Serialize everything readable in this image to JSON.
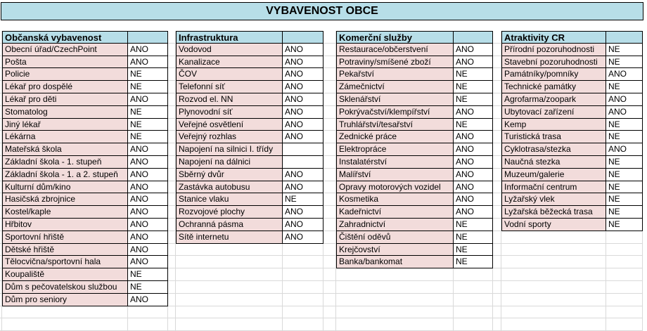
{
  "title": "VYBAVENOST OBCE",
  "tables": [
    {
      "header": "Občanská vybavenost",
      "rows": [
        [
          "Obecní úřad/CzechPoint",
          "ANO"
        ],
        [
          "Pošta",
          "ANO"
        ],
        [
          "Policie",
          "NE"
        ],
        [
          "Lékař pro dospělé",
          "NE"
        ],
        [
          "Lékař pro děti",
          "ANO"
        ],
        [
          "Stomatolog",
          "NE"
        ],
        [
          "Jiný lékař",
          "NE"
        ],
        [
          "Lékárna",
          "NE"
        ],
        [
          "Mateřská škola",
          "ANO"
        ],
        [
          "Základní škola - 1. stupeň",
          "ANO"
        ],
        [
          "Základní škola - 1. a 2. stupeň",
          "ANO"
        ],
        [
          "Kulturní dům/kino",
          "ANO"
        ],
        [
          "Hasičská zbrojnice",
          "ANO"
        ],
        [
          "Kostel/kaple",
          "ANO"
        ],
        [
          "Hřbitov",
          "ANO"
        ],
        [
          "Sportovní hřiště",
          "ANO"
        ],
        [
          "Dětské hřiště",
          "ANO"
        ],
        [
          "Tělocvična/sportovní hala",
          "ANO"
        ],
        [
          "Koupaliště",
          "NE"
        ],
        [
          "Dům s pečovatelskou službou",
          "NE"
        ],
        [
          "Dům pro seniory",
          "ANO"
        ]
      ]
    },
    {
      "header": "Infrastruktura",
      "rows": [
        [
          "Vodovod",
          "ANO"
        ],
        [
          "Kanalizace",
          "ANO"
        ],
        [
          "ČOV",
          "ANO"
        ],
        [
          "Telefonní síť",
          "ANO"
        ],
        [
          "Rozvod el. NN",
          "ANO"
        ],
        [
          "Plynovodní síť",
          "ANO"
        ],
        [
          "Veřejné osvětlení",
          "ANO"
        ],
        [
          "Veřejný rozhlas",
          "ANO"
        ],
        [
          "Napojení na silnici I. třídy",
          ""
        ],
        [
          "Napojení na dálnici",
          ""
        ],
        [
          "Sběrný dvůr",
          "ANO"
        ],
        [
          "Zastávka autobusu",
          "ANO"
        ],
        [
          "Stanice vlaku",
          "NE"
        ],
        [
          "Rozvojové plochy",
          "ANO"
        ],
        [
          "Ochranná pásma",
          "ANO"
        ],
        [
          "Sítě internetu",
          "ANO"
        ]
      ]
    },
    {
      "header": "Komerční služby",
      "rows": [
        [
          "Restaurace/občerstvení",
          "ANO"
        ],
        [
          "Potraviny/smíšené zboží",
          "ANO"
        ],
        [
          "Pekařství",
          "NE"
        ],
        [
          "Zámečnictví",
          "NE"
        ],
        [
          "Sklenářství",
          "NE"
        ],
        [
          "Pokrývačství/klempířství",
          "ANO"
        ],
        [
          "Truhlářství/tesařství",
          "NE"
        ],
        [
          "Zednické práce",
          "ANO"
        ],
        [
          "Elektropráce",
          "ANO"
        ],
        [
          "Instalatérství",
          "ANO"
        ],
        [
          "Malířství",
          "ANO"
        ],
        [
          "Opravy motorových vozidel",
          "ANO"
        ],
        [
          "Kosmetika",
          "ANO"
        ],
        [
          "Kadeřnictví",
          "ANO"
        ],
        [
          "Zahradnictví",
          "NE"
        ],
        [
          "Čištění oděvů",
          "NE"
        ],
        [
          "Krejčovství",
          "NE"
        ],
        [
          "Banka/bankomat",
          "NE"
        ]
      ]
    },
    {
      "header": "Atraktivity CR",
      "rows": [
        [
          "Přírodní pozoruhodnosti",
          "NE"
        ],
        [
          "Stavební pozoruhodnosti",
          "NE"
        ],
        [
          "Památníky/pomníky",
          "ANO"
        ],
        [
          "Technické památky",
          "NE"
        ],
        [
          "Agrofarma/zoopark",
          "ANO"
        ],
        [
          "Ubytovací zařízení",
          "ANO"
        ],
        [
          "Kemp",
          "NE"
        ],
        [
          "Turistická trasa",
          "NE"
        ],
        [
          "Cyklotrasa/stezka",
          "ANO"
        ],
        [
          "Naučná stezka",
          "NE"
        ],
        [
          "Muzeum/galerie",
          "NE"
        ],
        [
          "Informační centrum",
          "NE"
        ],
        [
          "Lyžařský vlek",
          "NE"
        ],
        [
          "Lyžařská běžecká trasa",
          "NE"
        ],
        [
          "Vodní sporty",
          "NE"
        ]
      ]
    }
  ]
}
